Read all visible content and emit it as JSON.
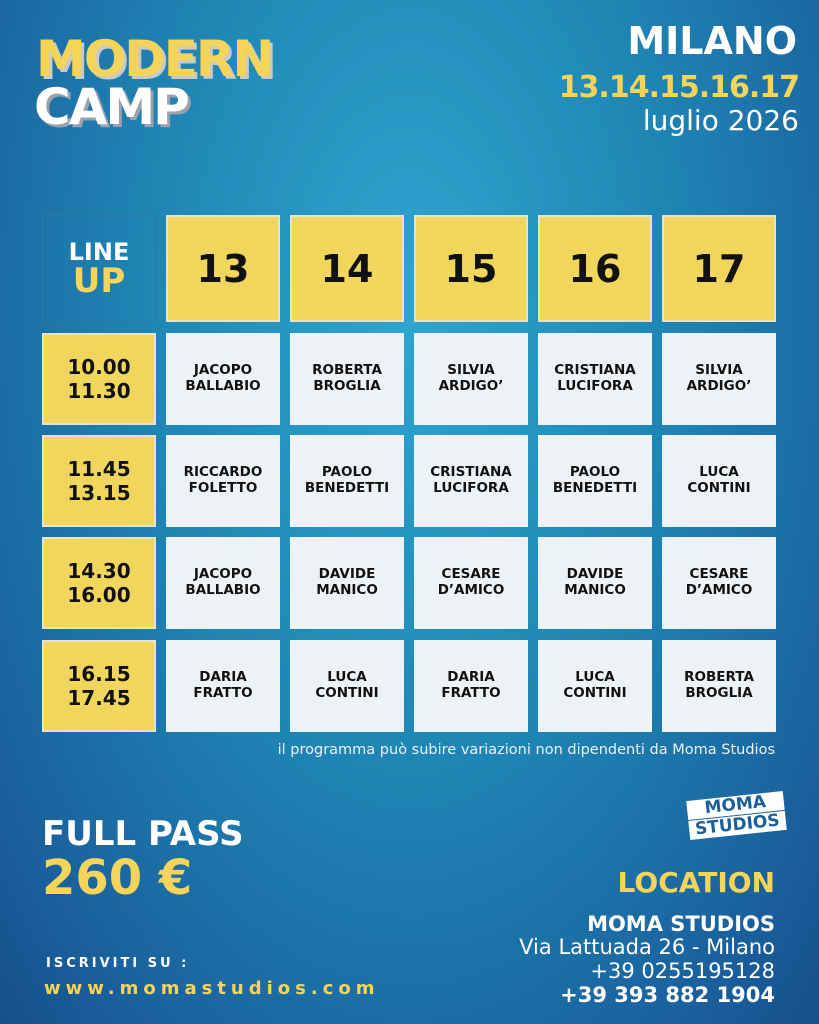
{
  "title": {
    "line1": "MODERN",
    "line2": "CAMP"
  },
  "event": {
    "city": "MILANO",
    "dates": "13.14.15.16.17",
    "month": "luglio 2026"
  },
  "lineup": {
    "label1": "LINE",
    "label2": "UP"
  },
  "days": [
    "13",
    "14",
    "15",
    "16",
    "17"
  ],
  "rows": [
    {
      "time1": "10.00",
      "time2": "11.30",
      "slots": [
        [
          "JACOPO",
          "BALLABIO"
        ],
        [
          "ROBERTA",
          "BROGLIA"
        ],
        [
          "SILVIA",
          "ARDIGO’"
        ],
        [
          "CRISTIANA",
          "LUCIFORA"
        ],
        [
          "SILVIA",
          "ARDIGO’"
        ]
      ]
    },
    {
      "time1": "11.45",
      "time2": "13.15",
      "slots": [
        [
          "RICCARDO",
          "FOLETTO"
        ],
        [
          "PAOLO",
          "BENEDETTI"
        ],
        [
          "CRISTIANA",
          "LUCIFORA"
        ],
        [
          "PAOLO",
          "BENEDETTI"
        ],
        [
          "LUCA",
          "CONTINI"
        ]
      ]
    },
    {
      "time1": "14.30",
      "time2": "16.00",
      "slots": [
        [
          "JACOPO",
          "BALLABIO"
        ],
        [
          "DAVIDE",
          "MANICO"
        ],
        [
          "CESARE",
          "D’AMICO"
        ],
        [
          "DAVIDE",
          "MANICO"
        ],
        [
          "CESARE",
          "D’AMICO"
        ]
      ]
    },
    {
      "time1": "16.15",
      "time2": "17.45",
      "slots": [
        [
          "DARIA",
          "FRATTO"
        ],
        [
          "LUCA",
          "CONTINI"
        ],
        [
          "DARIA",
          "FRATTO"
        ],
        [
          "LUCA",
          "CONTINI"
        ],
        [
          "ROBERTA",
          "BROGLIA"
        ]
      ]
    }
  ],
  "note": "il programma può subire variazioni non dipendenti da Moma Studios",
  "pass": {
    "label": "FULL PASS",
    "price": "260 €"
  },
  "signup": {
    "label": "ISCRIVITI SU :",
    "website": "www.momastudios.com"
  },
  "logo": {
    "line1": "MOMA",
    "line2": "STUDIOS"
  },
  "location": {
    "heading": "LOCATION",
    "name": "MOMA STUDIOS",
    "address": "Via Lattuada 26 - Milano",
    "phone1": "+39 0255195128",
    "phone2": "+39 393 882 1904"
  },
  "colors": {
    "accent": "#f1d65e",
    "background": "#1f86b4",
    "cell": "#eef2f5"
  }
}
